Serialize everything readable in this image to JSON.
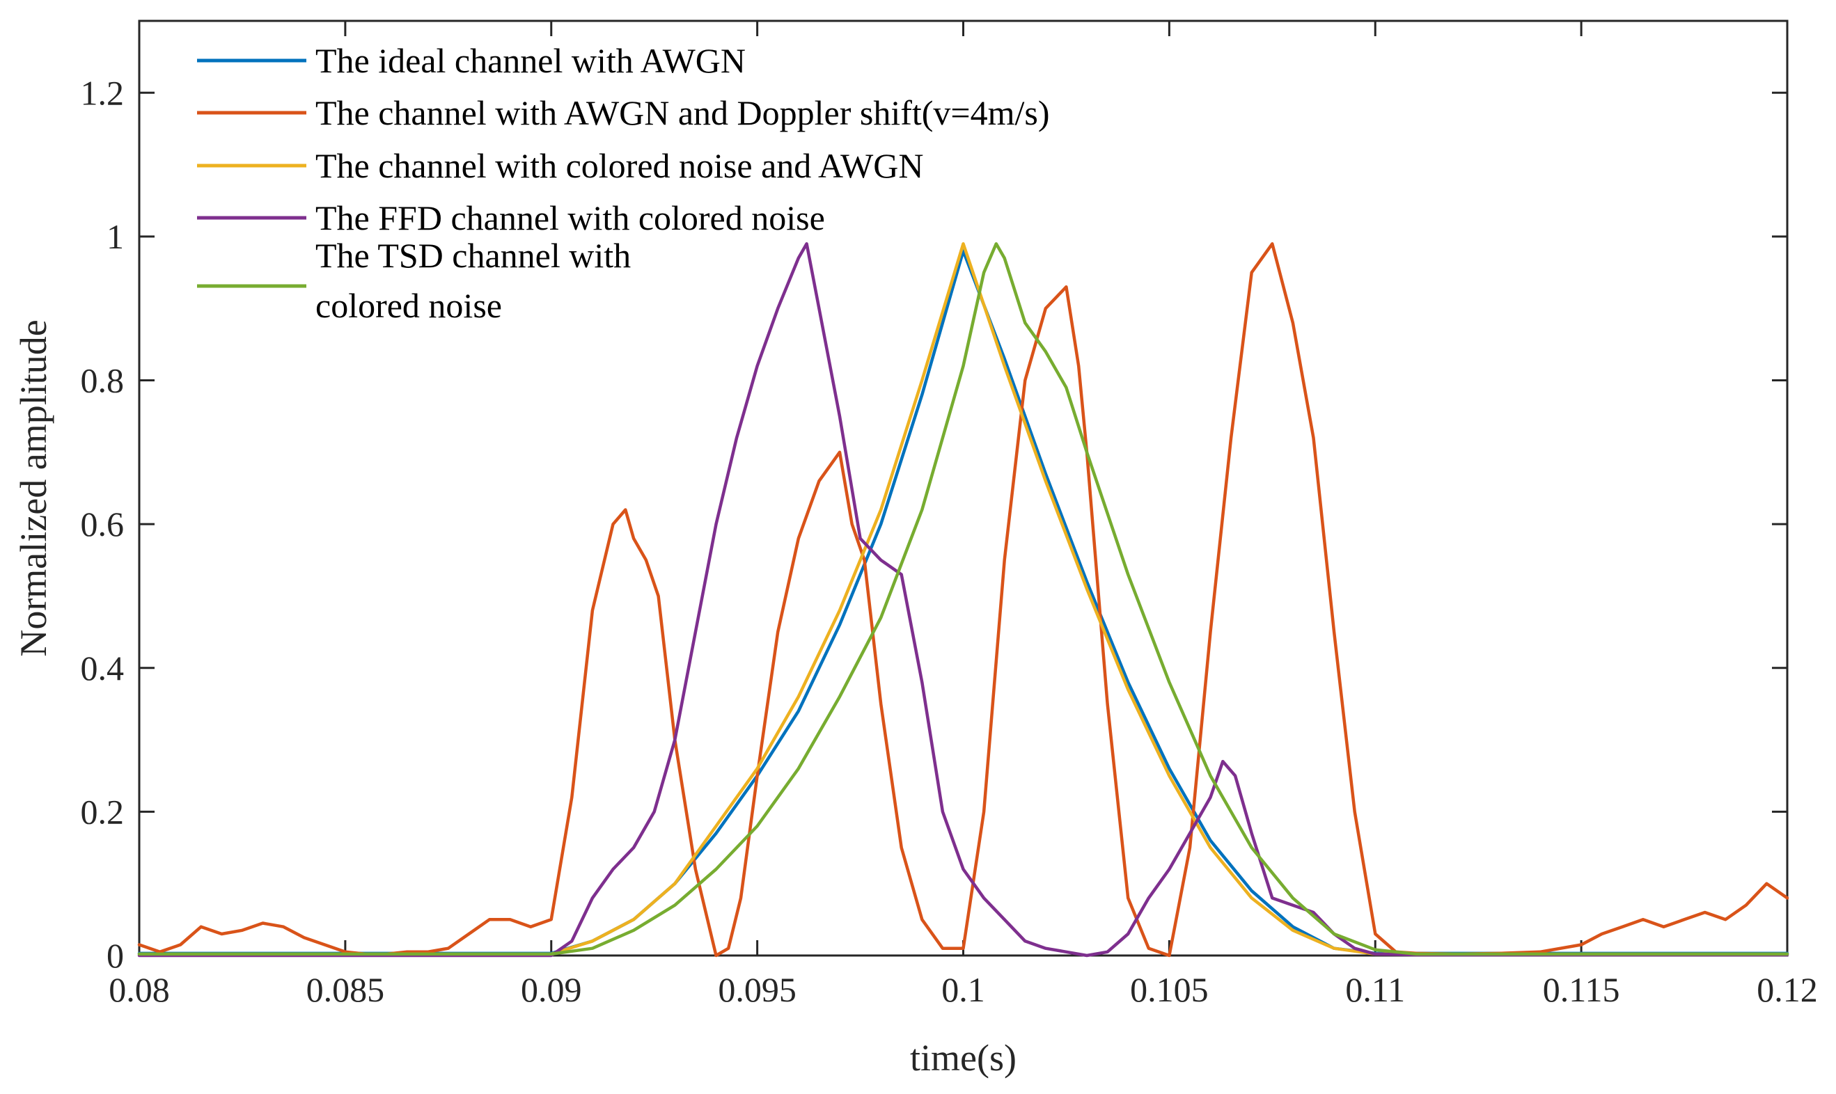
{
  "chart_data": {
    "type": "line",
    "title": "",
    "xlabel": "time(s)",
    "ylabel": "Normalized amplitude",
    "xlim": [
      0.08,
      0.12
    ],
    "ylim": [
      0,
      1.3
    ],
    "grid": false,
    "legend_position": "top-left",
    "x_ticks": [
      0.08,
      0.085,
      0.09,
      0.095,
      0.1,
      0.105,
      0.11,
      0.115,
      0.12
    ],
    "x_tick_labels": [
      "0.08",
      "0.085",
      "0.09",
      "0.095",
      "0.1",
      "0.105",
      "0.11",
      "0.115",
      "0.12"
    ],
    "y_ticks": [
      0,
      0.2,
      0.4,
      0.6,
      0.8,
      1,
      1.2
    ],
    "y_tick_labels": [
      "0",
      "0.2",
      "0.4",
      "0.6",
      "0.8",
      "1",
      "1.2"
    ],
    "series": [
      {
        "name": "The ideal channel with AWGN",
        "legend_lines": [
          "The ideal channel with AWGN"
        ],
        "color": "#0072BD",
        "x": [
          0.08,
          0.09,
          0.091,
          0.092,
          0.093,
          0.094,
          0.095,
          0.096,
          0.097,
          0.098,
          0.099,
          0.1,
          0.101,
          0.102,
          0.103,
          0.104,
          0.105,
          0.106,
          0.107,
          0.108,
          0.109,
          0.11,
          0.12
        ],
        "y": [
          0.003,
          0.003,
          0.02,
          0.05,
          0.1,
          0.17,
          0.25,
          0.34,
          0.46,
          0.6,
          0.78,
          0.98,
          0.83,
          0.67,
          0.52,
          0.38,
          0.26,
          0.16,
          0.09,
          0.04,
          0.01,
          0.003,
          0.003
        ]
      },
      {
        "name": "The channel with AWGN and Doppler shift(v=4m/s)",
        "legend_lines": [
          "The channel with AWGN and Doppler shift(v=4m/s)"
        ],
        "color": "#D95319",
        "x": [
          0.08,
          0.0805,
          0.081,
          0.0815,
          0.082,
          0.0825,
          0.083,
          0.0835,
          0.084,
          0.0845,
          0.085,
          0.0855,
          0.086,
          0.0865,
          0.087,
          0.0875,
          0.088,
          0.0885,
          0.089,
          0.0895,
          0.09,
          0.0905,
          0.091,
          0.0915,
          0.0918,
          0.092,
          0.0923,
          0.0926,
          0.093,
          0.0935,
          0.094,
          0.0943,
          0.0946,
          0.095,
          0.0955,
          0.096,
          0.0965,
          0.097,
          0.0973,
          0.0976,
          0.098,
          0.0985,
          0.099,
          0.0995,
          0.1,
          0.1005,
          0.101,
          0.1015,
          0.102,
          0.1025,
          0.1028,
          0.103,
          0.1035,
          0.104,
          0.1045,
          0.105,
          0.1055,
          0.106,
          0.1065,
          0.107,
          0.1075,
          0.108,
          0.1085,
          0.109,
          0.1095,
          0.11,
          0.1105,
          0.111,
          0.112,
          0.113,
          0.114,
          0.115,
          0.1155,
          0.116,
          0.1165,
          0.117,
          0.1175,
          0.118,
          0.1185,
          0.119,
          0.1195,
          0.12
        ],
        "y": [
          0.015,
          0.005,
          0.015,
          0.04,
          0.03,
          0.035,
          0.045,
          0.04,
          0.025,
          0.015,
          0.005,
          0.002,
          0.002,
          0.005,
          0.005,
          0.01,
          0.03,
          0.05,
          0.05,
          0.04,
          0.05,
          0.22,
          0.48,
          0.6,
          0.62,
          0.58,
          0.55,
          0.5,
          0.3,
          0.12,
          0.0,
          0.01,
          0.08,
          0.25,
          0.45,
          0.58,
          0.66,
          0.7,
          0.6,
          0.55,
          0.35,
          0.15,
          0.05,
          0.01,
          0.01,
          0.2,
          0.55,
          0.8,
          0.9,
          0.93,
          0.82,
          0.7,
          0.35,
          0.08,
          0.01,
          0.0,
          0.15,
          0.45,
          0.72,
          0.95,
          0.99,
          0.88,
          0.72,
          0.45,
          0.2,
          0.03,
          0.005,
          0.003,
          0.002,
          0.003,
          0.005,
          0.015,
          0.03,
          0.04,
          0.05,
          0.04,
          0.05,
          0.06,
          0.05,
          0.07,
          0.1,
          0.08
        ]
      },
      {
        "name": "The channel with colored noise and AWGN",
        "legend_lines": [
          "The channel with colored noise and AWGN"
        ],
        "color": "#EDB120",
        "x": [
          0.08,
          0.09,
          0.091,
          0.092,
          0.093,
          0.094,
          0.095,
          0.096,
          0.097,
          0.098,
          0.099,
          0.1,
          0.101,
          0.102,
          0.103,
          0.104,
          0.105,
          0.106,
          0.107,
          0.108,
          0.109,
          0.11,
          0.12
        ],
        "y": [
          0.002,
          0.002,
          0.02,
          0.05,
          0.1,
          0.18,
          0.26,
          0.36,
          0.48,
          0.62,
          0.8,
          0.99,
          0.82,
          0.66,
          0.51,
          0.37,
          0.25,
          0.15,
          0.08,
          0.035,
          0.01,
          0.002,
          0.002
        ]
      },
      {
        "name": "The FFD channel with colored noise",
        "legend_lines": [
          "The FFD channel with colored noise"
        ],
        "color": "#7E2F8E",
        "x": [
          0.08,
          0.09,
          0.0905,
          0.091,
          0.0915,
          0.092,
          0.0925,
          0.093,
          0.0935,
          0.094,
          0.0945,
          0.095,
          0.0955,
          0.096,
          0.0962,
          0.0965,
          0.097,
          0.0975,
          0.098,
          0.0985,
          0.099,
          0.0995,
          0.1,
          0.1005,
          0.101,
          0.1015,
          0.102,
          0.1025,
          0.103,
          0.1035,
          0.104,
          0.1045,
          0.105,
          0.1055,
          0.106,
          0.1063,
          0.1066,
          0.107,
          0.1075,
          0.108,
          0.1085,
          0.109,
          0.1095,
          0.11,
          0.111,
          0.12
        ],
        "y": [
          0.0,
          0.0,
          0.02,
          0.08,
          0.12,
          0.15,
          0.2,
          0.3,
          0.45,
          0.6,
          0.72,
          0.82,
          0.9,
          0.97,
          0.99,
          0.9,
          0.75,
          0.58,
          0.55,
          0.53,
          0.38,
          0.2,
          0.12,
          0.08,
          0.05,
          0.02,
          0.01,
          0.005,
          0.0,
          0.005,
          0.03,
          0.08,
          0.12,
          0.17,
          0.22,
          0.27,
          0.25,
          0.17,
          0.08,
          0.07,
          0.06,
          0.03,
          0.01,
          0.002,
          0.001,
          0.001
        ]
      },
      {
        "name": "The TSD channel with colored noise",
        "legend_lines": [
          "The TSD channel with",
          "colored noise"
        ],
        "color": "#77AC30",
        "x": [
          0.08,
          0.09,
          0.091,
          0.092,
          0.093,
          0.094,
          0.095,
          0.096,
          0.097,
          0.098,
          0.099,
          0.1,
          0.1005,
          0.1008,
          0.101,
          0.1015,
          0.102,
          0.1025,
          0.103,
          0.104,
          0.105,
          0.106,
          0.107,
          0.108,
          0.109,
          0.11,
          0.111,
          0.12
        ],
        "y": [
          0.002,
          0.002,
          0.01,
          0.035,
          0.07,
          0.12,
          0.18,
          0.26,
          0.36,
          0.47,
          0.62,
          0.82,
          0.95,
          0.99,
          0.97,
          0.88,
          0.84,
          0.79,
          0.7,
          0.53,
          0.38,
          0.25,
          0.15,
          0.08,
          0.03,
          0.008,
          0.002,
          0.002
        ]
      }
    ]
  }
}
